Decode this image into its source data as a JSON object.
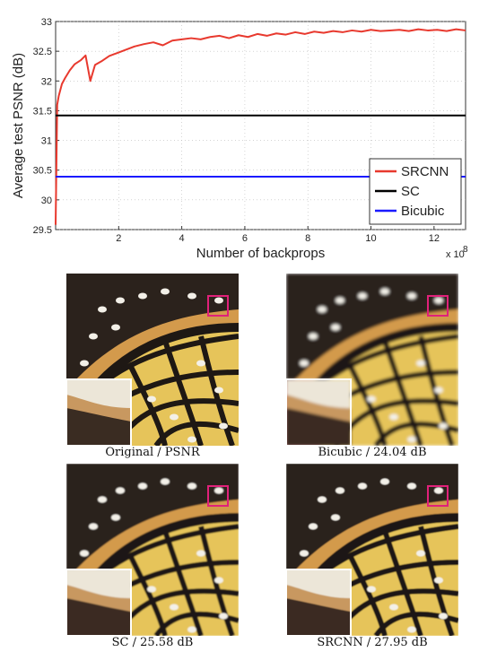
{
  "chart_data": {
    "type": "line",
    "title": "",
    "xlabel": "Number of backprops",
    "ylabel": "Average test PSNR (dB)",
    "x_multiplier_label": "x 10",
    "x_multiplier_exponent": "8",
    "xlim": [
      0,
      13
    ],
    "ylim": [
      29.5,
      33
    ],
    "xticks": [
      "2",
      "4",
      "6",
      "8",
      "10",
      "12"
    ],
    "yticks": [
      "29.5",
      "30",
      "30.5",
      "31",
      "31.5",
      "32",
      "32.5",
      "33"
    ],
    "grid": true,
    "legend_position": "bottom-right",
    "series": [
      {
        "name": "SRCNN",
        "color": "#e8392e",
        "x": [
          0,
          0.05,
          0.1,
          0.2,
          0.3,
          0.45,
          0.6,
          0.8,
          0.95,
          1.1,
          1.25,
          1.45,
          1.7,
          1.95,
          2.2,
          2.5,
          2.8,
          3.1,
          3.4,
          3.7,
          4.0,
          4.3,
          4.6,
          4.9,
          5.2,
          5.5,
          5.8,
          6.1,
          6.4,
          6.7,
          7.0,
          7.3,
          7.6,
          7.9,
          8.2,
          8.5,
          8.8,
          9.1,
          9.4,
          9.7,
          10.0,
          10.3,
          10.6,
          10.9,
          11.2,
          11.5,
          11.8,
          12.1,
          12.4,
          12.7,
          13.0
        ],
        "y": [
          29.58,
          31.6,
          31.75,
          31.95,
          32.05,
          32.18,
          32.28,
          32.35,
          32.43,
          32.0,
          32.27,
          32.33,
          32.42,
          32.47,
          32.52,
          32.58,
          32.62,
          32.65,
          32.6,
          32.68,
          32.7,
          32.72,
          32.7,
          32.74,
          32.76,
          32.72,
          32.77,
          32.74,
          32.79,
          32.76,
          32.8,
          32.78,
          32.82,
          32.79,
          32.83,
          32.81,
          32.84,
          32.82,
          32.85,
          32.83,
          32.86,
          32.84,
          32.85,
          32.86,
          32.84,
          32.87,
          32.85,
          32.86,
          32.84,
          32.87,
          32.85
        ]
      },
      {
        "name": "SC",
        "color": "#000000",
        "x": [
          0,
          13
        ],
        "y": [
          31.42,
          31.42
        ]
      },
      {
        "name": "Bicubic",
        "color": "#1a1aff",
        "x": [
          0,
          13
        ],
        "y": [
          30.39,
          30.39
        ]
      }
    ]
  },
  "legend": [
    "SRCNN",
    "SC",
    "Bicubic"
  ],
  "panels": [
    {
      "caption": "Original / PSNR"
    },
    {
      "caption": "Bicubic / 24.04 dB"
    },
    {
      "caption": "SC / 25.58 dB"
    },
    {
      "caption": "SRCNN / 27.95 dB"
    }
  ]
}
